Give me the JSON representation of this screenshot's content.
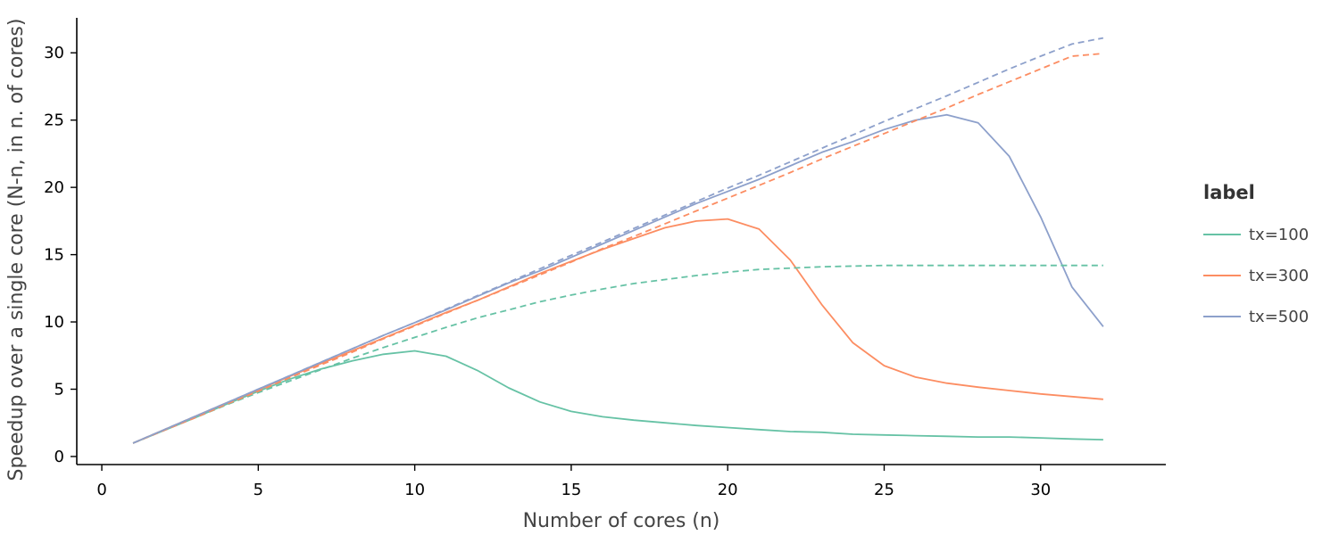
{
  "chart_data": {
    "type": "line",
    "xlabel": "Number of cores (n)",
    "ylabel": "Speedup over a single core (N-n, in n. of cores)",
    "xlim": [
      -0.8,
      34
    ],
    "ylim": [
      -0.6,
      32.6
    ],
    "xticks": [
      0,
      5,
      10,
      15,
      20,
      25,
      30
    ],
    "yticks": [
      0,
      5,
      10,
      15,
      20,
      25,
      30
    ],
    "grid": false,
    "legend_title": "label",
    "legend_position": "right",
    "x": [
      1,
      2,
      3,
      4,
      5,
      6,
      7,
      8,
      9,
      10,
      11,
      12,
      13,
      14,
      15,
      16,
      17,
      18,
      19,
      20,
      21,
      22,
      23,
      24,
      25,
      26,
      27,
      28,
      29,
      30,
      31,
      32
    ],
    "series": [
      {
        "name": "tx=100",
        "color": "#66c2a5",
        "style": "solid",
        "values": [
          1,
          1.95,
          2.9,
          3.9,
          4.85,
          5.75,
          6.5,
          7.1,
          7.6,
          7.85,
          7.45,
          6.4,
          5.1,
          4.05,
          3.35,
          2.95,
          2.7,
          2.5,
          2.3,
          2.15,
          2.0,
          1.85,
          1.8,
          1.65,
          1.6,
          1.55,
          1.5,
          1.45,
          1.45,
          1.38,
          1.3,
          1.25
        ]
      },
      {
        "name": "tx=300",
        "color": "#fc8d62",
        "style": "solid",
        "values": [
          1,
          2.0,
          3.0,
          4.0,
          4.95,
          5.95,
          6.9,
          7.85,
          8.8,
          9.75,
          10.7,
          11.6,
          12.6,
          13.6,
          14.5,
          15.4,
          16.2,
          17.0,
          17.5,
          17.65,
          16.9,
          14.6,
          11.3,
          8.45,
          6.75,
          5.9,
          5.45,
          5.15,
          4.9,
          4.65,
          4.45,
          4.25
        ]
      },
      {
        "name": "tx=500",
        "color": "#8da0cb",
        "style": "solid",
        "values": [
          1,
          2.0,
          3.0,
          4.0,
          5.0,
          6.0,
          7.0,
          8.0,
          9.0,
          9.95,
          10.9,
          11.9,
          12.9,
          13.8,
          14.8,
          15.8,
          16.8,
          17.8,
          18.8,
          19.7,
          20.6,
          21.6,
          22.6,
          23.4,
          24.3,
          25.0,
          25.4,
          24.8,
          22.3,
          17.8,
          12.6,
          9.65
        ]
      },
      {
        "color": "#66c2a5",
        "style": "dashed",
        "values": [
          1,
          1.95,
          2.9,
          3.85,
          4.75,
          5.6,
          6.45,
          7.3,
          8.1,
          8.85,
          9.6,
          10.3,
          10.9,
          11.5,
          12.0,
          12.45,
          12.85,
          13.15,
          13.45,
          13.7,
          13.9,
          14.0,
          14.1,
          14.15,
          14.2,
          14.2,
          14.2,
          14.2,
          14.2,
          14.2,
          14.2,
          14.2
        ]
      },
      {
        "color": "#fc8d62",
        "style": "dashed",
        "values": [
          1,
          1.95,
          2.9,
          3.9,
          4.85,
          5.85,
          6.8,
          7.75,
          8.75,
          9.7,
          10.65,
          11.6,
          12.55,
          13.5,
          14.45,
          15.45,
          16.35,
          17.3,
          18.25,
          19.2,
          20.15,
          21.1,
          22.1,
          23.05,
          24.0,
          24.95,
          25.9,
          26.9,
          27.85,
          28.8,
          29.75,
          29.95
        ]
      },
      {
        "color": "#8da0cb",
        "style": "dashed",
        "values": [
          1,
          2.0,
          3.0,
          4.0,
          5.0,
          6.0,
          7.0,
          8.0,
          9.0,
          9.95,
          10.95,
          11.95,
          12.95,
          13.95,
          14.95,
          15.95,
          16.95,
          17.95,
          18.95,
          19.95,
          20.9,
          21.9,
          22.9,
          23.9,
          24.9,
          25.85,
          26.8,
          27.8,
          28.8,
          29.75,
          30.65,
          31.1
        ]
      }
    ]
  }
}
